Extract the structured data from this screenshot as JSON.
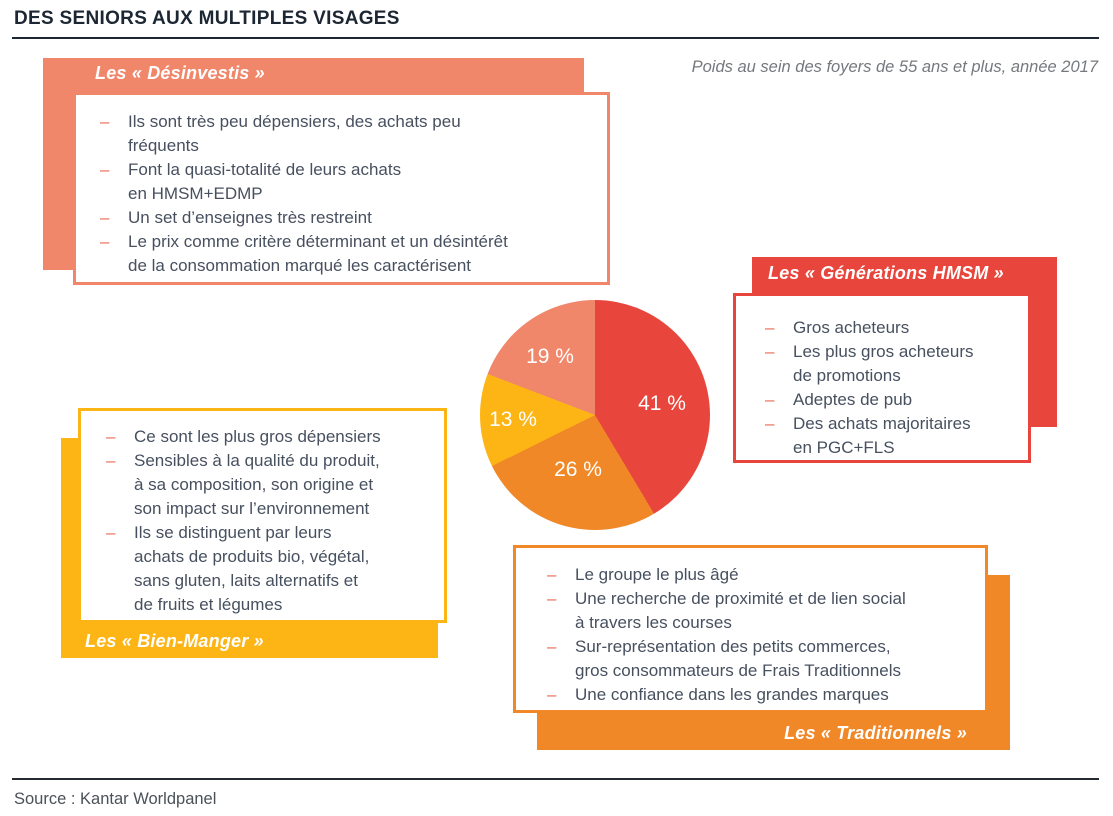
{
  "ui": {
    "bullet_char": "–",
    "title": "DES SENIORS AUX MULTIPLES VISAGES",
    "subtitle": "Poids au sein des foyers de 55 ans et plus, année 2017",
    "source": "Source : Kantar Worldpanel"
  },
  "colors": {
    "red": "#E8463C",
    "orange": "#F08828",
    "yellow": "#FCB515",
    "salmon": "#F0876B",
    "bullet_dash": "#EA6A57",
    "body_text": "#47505F",
    "title_text": "#1C2733",
    "subtitle_text": "#75797E"
  },
  "segments": {
    "desinvestis": {
      "label": "Les « Désinvestis »",
      "accent": "#F0876B",
      "bullets": [
        "Ils sont très peu dépensiers, des achats peu\nfréquents",
        "Font la quasi-totalité de leurs achats\nen HMSM+EDMP",
        "Un set d’enseignes très restreint",
        "Le prix comme critère déterminant et un désintérêt\nde la consommation marqué les caractérisent"
      ]
    },
    "generations_hmsm": {
      "label": "Les « Générations HMSM »",
      "accent": "#E8463C",
      "bullets": [
        "Gros acheteurs",
        "Les plus gros acheteurs\nde promotions",
        "Adeptes de pub",
        "Des achats majoritaires\nen PGC+FLS"
      ]
    },
    "bien_manger": {
      "label": "Les « Bien-Manger »",
      "accent": "#FCB515",
      "bullets": [
        "Ce sont les plus gros dépensiers",
        "Sensibles à la qualité du produit,\nà sa composition, son origine et\nson impact sur l’environnement",
        "Ils se distinguent par leurs\nachats de produits bio, végétal,\nsans gluten, laits alternatifs et\nde fruits et légumes"
      ]
    },
    "traditionnels": {
      "label": "Les « Traditionnels »",
      "accent": "#F08828",
      "bullets": [
        "Le groupe le plus âgé",
        "Une recherche de proximité et de lien social\nà travers les courses",
        "Sur-représentation des petits commerces,\ngros consommateurs de Frais Traditionnels",
        "Une confiance dans les grandes marques"
      ]
    }
  },
  "chart_data": {
    "type": "pie",
    "title": "DES SENIORS AUX MULTIPLES VISAGES",
    "subtitle": "Poids au sein des foyers de 55 ans et plus, année 2017",
    "source": "Source : Kantar Worldpanel",
    "unit": "%",
    "labels": [
      "Les « Générations HMSM »",
      "Les « Traditionnels »",
      "Les « Bien-Manger »",
      "Les « Désinvestis »"
    ],
    "values": [
      41,
      26,
      13,
      19
    ],
    "display_labels": [
      "41 %",
      "26 %",
      "13 %",
      "19 %"
    ],
    "colors": [
      "#E8463C",
      "#F08828",
      "#FCB515",
      "#F0876B"
    ],
    "start_angle_deg": 0,
    "direction": "clockwise",
    "legend": "none"
  }
}
